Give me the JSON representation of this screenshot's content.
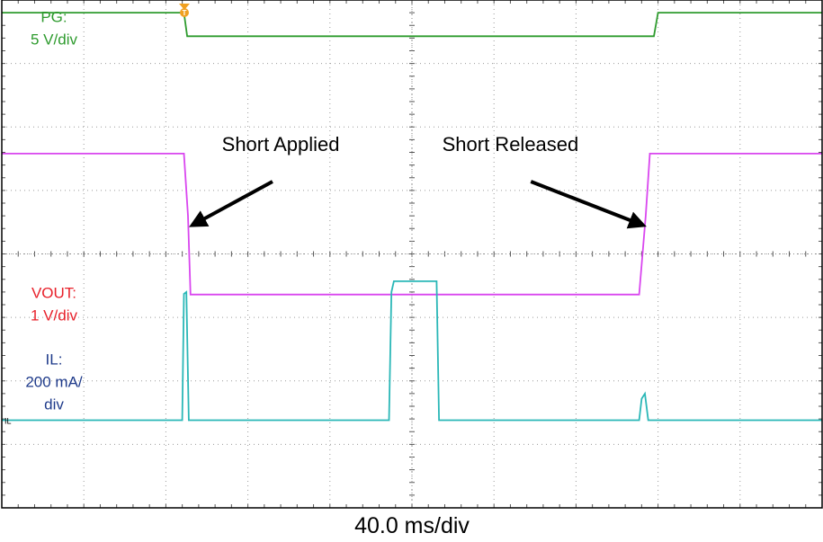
{
  "chart_data": {
    "type": "line",
    "xlabel": "40.0 ms/div",
    "title": "",
    "x_unit": "div",
    "y_unit": "div",
    "xlim": [
      0,
      10
    ],
    "ylim": [
      0,
      8
    ],
    "trigger_marker": "T",
    "x_divisions": 10,
    "y_divisions": 8,
    "grid": true,
    "colors": {
      "PG": "#2e9b2e",
      "VOUT": "#d946ef",
      "IL": "#2ab7b7",
      "VOUT_label": "#e8202a",
      "IL_label": "#1e3a8a",
      "trigger": "#f0a020"
    },
    "series": [
      {
        "name": "PG",
        "label_lines": [
          "PG:",
          "5 V/div"
        ],
        "ground_marker": "",
        "points": [
          [
            0,
            7.8
          ],
          [
            2.22,
            7.8
          ],
          [
            2.26,
            7.43
          ],
          [
            7.95,
            7.43
          ],
          [
            8.0,
            7.8
          ],
          [
            10,
            7.8
          ]
        ]
      },
      {
        "name": "VOUT",
        "label_lines": [
          "VOUT:",
          "1 V/div"
        ],
        "ground_marker": "",
        "points": [
          [
            0,
            5.58
          ],
          [
            2.22,
            5.58
          ],
          [
            2.27,
            4.6
          ],
          [
            2.3,
            3.36
          ],
          [
            7.77,
            3.36
          ],
          [
            7.85,
            4.6
          ],
          [
            7.9,
            5.58
          ],
          [
            10,
            5.58
          ]
        ]
      },
      {
        "name": "IL",
        "label_lines": [
          "IL:",
          "200 mA/",
          "div"
        ],
        "ground_marker": "IL",
        "points": [
          [
            0,
            1.38
          ],
          [
            2.2,
            1.38
          ],
          [
            2.22,
            3.37
          ],
          [
            2.25,
            3.4
          ],
          [
            2.28,
            1.38
          ],
          [
            4.72,
            1.38
          ],
          [
            4.75,
            3.4
          ],
          [
            4.78,
            3.57
          ],
          [
            5.3,
            3.57
          ],
          [
            5.33,
            1.38
          ],
          [
            7.77,
            1.38
          ],
          [
            7.8,
            1.72
          ],
          [
            7.84,
            1.8
          ],
          [
            7.88,
            1.38
          ],
          [
            10,
            1.38
          ]
        ]
      }
    ],
    "annotations": [
      {
        "text": "Short Applied",
        "text_x": 3.4,
        "text_y": 5.62,
        "arrow_from": [
          3.3,
          5.14
        ],
        "arrow_to": [
          2.32,
          4.45
        ]
      },
      {
        "text": "Short Released",
        "text_x": 6.2,
        "text_y": 5.62,
        "arrow_from": [
          6.45,
          5.14
        ],
        "arrow_to": [
          7.82,
          4.45
        ]
      }
    ]
  }
}
